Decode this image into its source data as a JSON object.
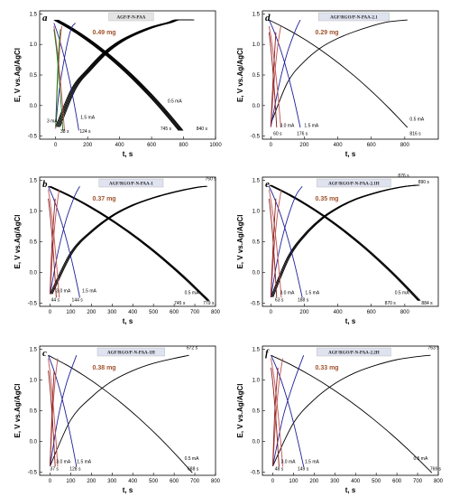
{
  "chart_data": [
    {
      "type": "line",
      "panel_label": "a",
      "title": "AGF/P-N-PAA",
      "mass_label": "0.49 mg",
      "xlabel": "t, s",
      "ylabel": "E, V vs.Ag/AgCl",
      "xlim": [
        -100,
        1000
      ],
      "ylim": [
        -0.55,
        1.55
      ],
      "xticks": [
        0,
        200,
        400,
        600,
        800,
        1000
      ],
      "yticks": [
        -0.5,
        0.0,
        0.5,
        1.0,
        1.5
      ],
      "series": [
        {
          "color": "#000000",
          "curve": "concave",
          "multi": 5,
          "x": [
            0,
            100,
            200,
            300,
            400,
            500,
            600,
            700,
            745,
            840
          ],
          "y": [
            -0.35,
            0.28,
            0.6,
            0.87,
            1.06,
            1.19,
            1.29,
            1.36,
            1.4,
            1.4
          ],
          "discharge_end": [
            770,
            -0.4
          ]
        },
        {
          "color": "#1f1f99",
          "curve": "concave",
          "multi": 0,
          "x": [
            0,
            20,
            40,
            60,
            80,
            100,
            124
          ],
          "y": [
            -0.35,
            0.2,
            0.55,
            0.85,
            1.1,
            1.28,
            1.35
          ],
          "discharge_end": [
            145,
            -0.4
          ]
        },
        {
          "color": "#c05050",
          "curve": "concave",
          "multi": 0,
          "x": [
            0,
            10,
            20,
            30,
            38
          ],
          "y": [
            -0.38,
            0.3,
            0.72,
            1.1,
            1.3
          ],
          "discharge_end": [
            55,
            -0.4
          ]
        },
        {
          "color": "#1a7a1a",
          "curve": "concave",
          "multi": 0,
          "x": [
            0,
            10,
            20,
            30
          ],
          "y": [
            -0.35,
            0.4,
            0.95,
            1.25
          ],
          "discharge_end": [
            45,
            -0.4
          ]
        }
      ],
      "annotations": [
        {
          "text": "3 mA",
          "x": -55,
          "y": -0.28
        },
        {
          "text": "1.5 mA",
          "x": 155,
          "y": -0.22
        },
        {
          "text": "38 s",
          "x": 30,
          "y": -0.45
        },
        {
          "text": "124 s",
          "x": 150,
          "y": -0.45
        },
        {
          "text": "0.5 mA",
          "x": 700,
          "y": 0.05
        },
        {
          "text": "745 s",
          "x": 655,
          "y": -0.4
        },
        {
          "text": "840 s",
          "x": 880,
          "y": -0.4
        }
      ]
    },
    {
      "type": "line",
      "panel_label": "d",
      "title": "AGF/RGO/P-N-PAA-2.1",
      "mass_label": "0.29 mg",
      "xlabel": "t, s",
      "ylabel": "E, V vs.Ag/AgCl",
      "xlim": [
        -50,
        1000
      ],
      "ylim": [
        -0.55,
        1.55
      ],
      "xticks": [
        0,
        200,
        400,
        600,
        800
      ],
      "yticks": [
        -0.5,
        0.0,
        0.5,
        1.0,
        1.5
      ],
      "series": [
        {
          "color": "#000000",
          "curve": "concave",
          "multi": 0,
          "x": [
            0,
            100,
            200,
            300,
            400,
            500,
            600,
            700,
            816
          ],
          "y": [
            -0.3,
            0.38,
            0.72,
            0.95,
            1.1,
            1.21,
            1.3,
            1.37,
            1.4
          ],
          "discharge_end": [
            816,
            -0.35
          ]
        },
        {
          "color": "#1f1f99",
          "curve": "concave",
          "multi": 0,
          "x": [
            0,
            50,
            100,
            150,
            176
          ],
          "y": [
            -0.35,
            0.35,
            0.88,
            1.25,
            1.4
          ],
          "discharge_end": [
            176,
            -0.35
          ]
        },
        {
          "color": "#c05050",
          "curve": "concave",
          "multi": 0,
          "x": [
            0,
            20,
            40,
            60
          ],
          "y": [
            -0.35,
            0.4,
            0.95,
            1.3
          ],
          "discharge_end": [
            60,
            -0.35
          ]
        },
        {
          "color": "#8b1a1a",
          "curve": "concave",
          "multi": 0,
          "x": [
            0,
            15,
            30
          ],
          "y": [
            -0.35,
            0.5,
            1.2
          ],
          "discharge_end": [
            35,
            -0.35
          ]
        }
      ],
      "annotations": [
        {
          "text": "3.0 mA",
          "x": 55,
          "y": -0.35
        },
        {
          "text": "1.5 mA",
          "x": 200,
          "y": -0.35
        },
        {
          "text": "60 s",
          "x": 15,
          "y": -0.48
        },
        {
          "text": "176 s",
          "x": 155,
          "y": -0.48
        },
        {
          "text": "0.5 mA",
          "x": 830,
          "y": -0.25
        },
        {
          "text": "816 s",
          "x": 830,
          "y": -0.48
        }
      ]
    },
    {
      "type": "line",
      "panel_label": "b",
      "title": "AGF/RGO/P-N-PAA-1",
      "mass_label": "0.37 mg",
      "xlabel": "t, s",
      "ylabel": "E, V vs.Ag/AgCl",
      "xlim": [
        -50,
        800
      ],
      "ylim": [
        -0.55,
        1.55
      ],
      "xticks": [
        0,
        100,
        200,
        300,
        400,
        500,
        600,
        700,
        800
      ],
      "yticks": [
        -0.5,
        0.0,
        0.5,
        1.0,
        1.5
      ],
      "series": [
        {
          "color": "#000000",
          "curve": "concave",
          "multi": 3,
          "x": [
            0,
            100,
            200,
            300,
            400,
            500,
            600,
            700,
            750
          ],
          "y": [
            -0.35,
            0.33,
            0.68,
            0.93,
            1.1,
            1.22,
            1.31,
            1.38,
            1.4
          ],
          "discharge_end": [
            760,
            -0.45
          ]
        },
        {
          "color": "#1f1f99",
          "curve": "concave",
          "multi": 0,
          "x": [
            0,
            40,
            80,
            120,
            144
          ],
          "y": [
            -0.35,
            0.35,
            0.88,
            1.25,
            1.4
          ],
          "discharge_end": [
            144,
            -0.4
          ]
        },
        {
          "color": "#c05050",
          "curve": "concave",
          "multi": 0,
          "x": [
            0,
            15,
            30,
            44
          ],
          "y": [
            -0.35,
            0.45,
            1.0,
            1.35
          ],
          "discharge_end": [
            44,
            -0.4
          ]
        },
        {
          "color": "#8b1a1a",
          "curve": "concave",
          "multi": 0,
          "x": [
            0,
            10,
            25
          ],
          "y": [
            -0.35,
            0.5,
            1.2
          ],
          "discharge_end": [
            30,
            -0.4
          ]
        }
      ],
      "annotations": [
        {
          "text": "3.0 mA",
          "x": 30,
          "y": -0.32
        },
        {
          "text": "1.5 mA",
          "x": 155,
          "y": -0.32
        },
        {
          "text": "44 s",
          "x": 5,
          "y": -0.47
        },
        {
          "text": "144 s",
          "x": 105,
          "y": -0.47
        },
        {
          "text": "0.5 mA",
          "x": 650,
          "y": -0.35
        },
        {
          "text": "745 s",
          "x": 600,
          "y": -0.52
        },
        {
          "text": "779 s",
          "x": 740,
          "y": -0.52
        },
        {
          "text": "750 s",
          "x": 750,
          "y": 1.5
        }
      ]
    },
    {
      "type": "line",
      "panel_label": "e",
      "title": "AGF/RGO/P-N-PAA-2.1H",
      "mass_label": "0.35 mg",
      "xlabel": "t, s",
      "ylabel": "E, V vs.Ag/AgCl",
      "xlim": [
        -50,
        1000
      ],
      "ylim": [
        -0.55,
        1.55
      ],
      "xticks": [
        0,
        200,
        400,
        600,
        800
      ],
      "yticks": [
        -0.5,
        0.0,
        0.5,
        1.0,
        1.5
      ],
      "series": [
        {
          "color": "#000000",
          "curve": "concave",
          "multi": 3,
          "x": [
            0,
            100,
            200,
            300,
            400,
            500,
            600,
            700,
            800,
            876
          ],
          "y": [
            -0.4,
            0.25,
            0.62,
            0.88,
            1.06,
            1.19,
            1.28,
            1.35,
            1.4,
            1.42
          ],
          "discharge_end": [
            880,
            -0.45
          ]
        },
        {
          "color": "#1f1f99",
          "curve": "concave",
          "multi": 0,
          "x": [
            0,
            50,
            100,
            150,
            188
          ],
          "y": [
            -0.4,
            0.35,
            0.88,
            1.25,
            1.4
          ],
          "discharge_end": [
            188,
            -0.4
          ]
        },
        {
          "color": "#c05050",
          "curve": "concave",
          "multi": 0,
          "x": [
            0,
            20,
            40,
            63
          ],
          "y": [
            -0.4,
            0.4,
            0.95,
            1.35
          ],
          "discharge_end": [
            63,
            -0.4
          ]
        },
        {
          "color": "#8b1a1a",
          "curve": "concave",
          "multi": 0,
          "x": [
            0,
            15,
            30
          ],
          "y": [
            -0.4,
            0.5,
            1.2
          ],
          "discharge_end": [
            35,
            -0.4
          ]
        }
      ],
      "annotations": [
        {
          "text": "3.0 mA",
          "x": 55,
          "y": -0.35
        },
        {
          "text": "1.5 mA",
          "x": 205,
          "y": -0.35
        },
        {
          "text": "63 s",
          "x": 25,
          "y": -0.47
        },
        {
          "text": "188 s",
          "x": 160,
          "y": -0.47
        },
        {
          "text": "0.5 mA",
          "x": 740,
          "y": -0.35
        },
        {
          "text": "870 s",
          "x": 680,
          "y": -0.52
        },
        {
          "text": "884 s",
          "x": 900,
          "y": -0.52
        },
        {
          "text": "876 s",
          "x": 760,
          "y": 1.55
        },
        {
          "text": "890 s",
          "x": 880,
          "y": 1.45
        }
      ]
    },
    {
      "type": "line",
      "panel_label": "c",
      "title": "AGF/RGO/P-N-PAA-1H",
      "mass_label": "0.38 mg",
      "xlabel": "t, s",
      "ylabel": "E, V vs.Ag/AgCl",
      "xlim": [
        -50,
        800
      ],
      "ylim": [
        -0.55,
        1.55
      ],
      "xticks": [
        0,
        100,
        200,
        300,
        400,
        500,
        600,
        700,
        800
      ],
      "yticks": [
        -0.5,
        0.0,
        0.5,
        1.0,
        1.5
      ],
      "series": [
        {
          "color": "#000000",
          "curve": "concave",
          "multi": 0,
          "x": [
            0,
            100,
            200,
            300,
            400,
            500,
            600,
            672
          ],
          "y": [
            -0.4,
            0.35,
            0.72,
            0.98,
            1.15,
            1.27,
            1.35,
            1.4
          ],
          "discharge_end": [
            688,
            -0.5
          ]
        },
        {
          "color": "#1f1f99",
          "curve": "concave",
          "multi": 0,
          "x": [
            0,
            40,
            80,
            128
          ],
          "y": [
            -0.4,
            0.4,
            0.95,
            1.4
          ],
          "discharge_end": [
            128,
            -0.4
          ]
        },
        {
          "color": "#c05050",
          "curve": "concave",
          "multi": 0,
          "x": [
            0,
            12,
            25,
            37
          ],
          "y": [
            -0.4,
            0.45,
            1.0,
            1.35
          ],
          "discharge_end": [
            37,
            -0.4
          ]
        },
        {
          "color": "#8b1a1a",
          "curve": "concave",
          "multi": 0,
          "x": [
            0,
            10,
            20
          ],
          "y": [
            -0.4,
            0.5,
            1.15
          ],
          "discharge_end": [
            25,
            -0.4
          ]
        }
      ],
      "annotations": [
        {
          "text": "3.0 mA",
          "x": 30,
          "y": -0.35
        },
        {
          "text": "1.5 mA",
          "x": 130,
          "y": -0.35
        },
        {
          "text": "37 s",
          "x": 0,
          "y": -0.47
        },
        {
          "text": "128 s",
          "x": 95,
          "y": -0.47
        },
        {
          "text": "0.5 mA",
          "x": 650,
          "y": -0.3
        },
        {
          "text": "688 s",
          "x": 665,
          "y": -0.47
        },
        {
          "text": "672 s",
          "x": 660,
          "y": 1.5
        }
      ]
    },
    {
      "type": "line",
      "panel_label": "f",
      "title": "AGF/RGO/P-N-PAA-2.2H",
      "mass_label": "0.33 mg",
      "xlabel": "t, s",
      "ylabel": "E, V vs.Ag/AgCl",
      "xlim": [
        -50,
        800
      ],
      "ylim": [
        -0.55,
        1.55
      ],
      "xticks": [
        0,
        100,
        200,
        300,
        400,
        500,
        600,
        700,
        800
      ],
      "yticks": [
        -0.5,
        0.0,
        0.5,
        1.0,
        1.5
      ],
      "series": [
        {
          "color": "#000000",
          "curve": "concave",
          "multi": 0,
          "x": [
            0,
            100,
            200,
            300,
            400,
            500,
            600,
            700,
            763
          ],
          "y": [
            -0.4,
            0.3,
            0.68,
            0.94,
            1.12,
            1.24,
            1.33,
            1.38,
            1.4
          ],
          "discharge_end": [
            769,
            -0.5
          ]
        },
        {
          "color": "#1f1f99",
          "curve": "concave",
          "multi": 0,
          "x": [
            0,
            50,
            100,
            149
          ],
          "y": [
            -0.4,
            0.4,
            0.95,
            1.4
          ],
          "discharge_end": [
            149,
            -0.4
          ]
        },
        {
          "color": "#c05050",
          "curve": "concave",
          "multi": 0,
          "x": [
            0,
            15,
            30,
            48
          ],
          "y": [
            -0.4,
            0.4,
            0.95,
            1.35
          ],
          "discharge_end": [
            48,
            -0.4
          ]
        },
        {
          "color": "#8b1a1a",
          "curve": "concave",
          "multi": 0,
          "x": [
            0,
            10,
            25
          ],
          "y": [
            -0.4,
            0.5,
            1.2
          ],
          "discharge_end": [
            30,
            -0.4
          ]
        }
      ],
      "annotations": [
        {
          "text": "3.0 mA",
          "x": 40,
          "y": -0.35
        },
        {
          "text": "1.5 mA",
          "x": 155,
          "y": -0.35
        },
        {
          "text": "48 s",
          "x": 10,
          "y": -0.47
        },
        {
          "text": "149 s",
          "x": 120,
          "y": -0.47
        },
        {
          "text": "0.5 mA",
          "x": 680,
          "y": -0.3
        },
        {
          "text": "769 s",
          "x": 760,
          "y": -0.47
        },
        {
          "text": "763 s",
          "x": 750,
          "y": 1.5
        }
      ]
    }
  ],
  "colors": {
    "mass_label": "#a0522d",
    "title_box_a": "#e4e4e4",
    "title_box": "#dfe3f0"
  }
}
